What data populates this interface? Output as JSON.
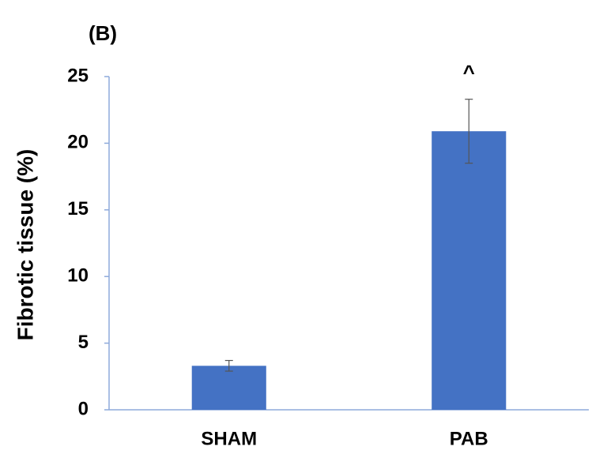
{
  "chart_data": {
    "type": "bar",
    "panel_label": "(B)",
    "y_label": "Fibrotic tissue (%)",
    "categories": [
      "SHAM",
      "PAB"
    ],
    "values": [
      3.3,
      20.9
    ],
    "errors": [
      0.4,
      2.4
    ],
    "color": "#4472c4",
    "ylim": [
      0,
      25
    ],
    "yticks": [
      0,
      5,
      10,
      15,
      20,
      25
    ],
    "grid": false,
    "annotations": [
      {
        "category": "PAB",
        "text": "^"
      }
    ]
  }
}
